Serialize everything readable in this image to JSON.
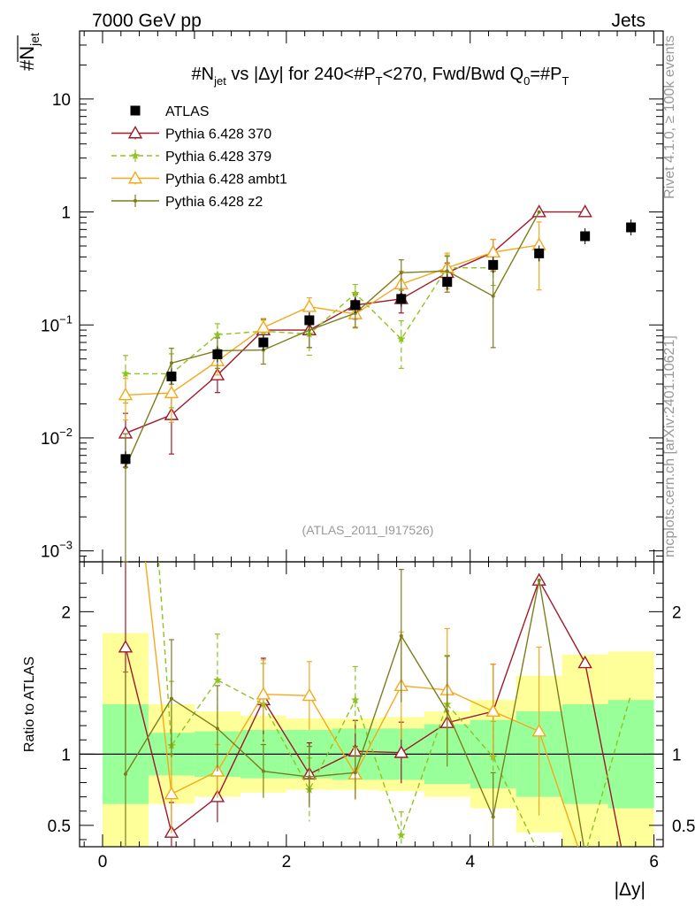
{
  "header": {
    "left": "7000 GeV pp",
    "right": "Jets"
  },
  "side": {
    "rivet": "Rivet 4.1.0, ≥ 100k events",
    "mcplots": "mcplots.cern.ch [arXiv:2401.10621]"
  },
  "analysis_id": "(ATLAS_2011_I917526)",
  "chart_data": {
    "type": "line",
    "title": "#N_jet vs |Δy| for 240<#P_T<270, Fwd/Bwd Q_0=#P_T",
    "title_parts": {
      "a": "#N",
      "a_sub": "jet",
      "b": " vs |Δy|  for 240<#P",
      "b_sub": "T",
      "c": "<270, Fwd/Bwd Q",
      "c_sub": "0",
      "d": "=#P",
      "d_sub": "T"
    },
    "ylabel": "#N",
    "ylabel_sub": "jet",
    "xlabel": "|Δy|",
    "ratio_ylabel": "Ratio to ATLAS",
    "xlim": [
      -0.25,
      6.1
    ],
    "ylim": [
      0.0008,
      40
    ],
    "yscale": "log",
    "ratio_ylim": [
      0.35,
      2.35
    ],
    "x_ticks": [
      0,
      2,
      4,
      6
    ],
    "x_tick_labels": [
      "0",
      "2",
      "4",
      "6"
    ],
    "y_ticks": [
      {
        "value": 10,
        "base": "10",
        "exp": ""
      },
      {
        "value": 1,
        "base": "1",
        "exp": ""
      },
      {
        "value": 0.1,
        "base": "10",
        "exp": "−1"
      },
      {
        "value": 0.01,
        "base": "10",
        "exp": "−2"
      },
      {
        "value": 0.001,
        "base": "10",
        "exp": "−3"
      }
    ],
    "ratio_ticks": [
      {
        "value": 2,
        "label": "2"
      },
      {
        "value": 1,
        "label": "1"
      },
      {
        "value": 0.5,
        "label": "0.5"
      }
    ],
    "bins": [
      0,
      0.5,
      1,
      1.5,
      2,
      2.5,
      3,
      3.5,
      4,
      4.5,
      5,
      5.5,
      6
    ],
    "data": {
      "name": "ATLAS",
      "x": [
        0.25,
        0.75,
        1.25,
        1.75,
        2.25,
        2.75,
        3.25,
        3.75,
        4.25,
        4.75,
        5.25,
        5.75
      ],
      "y": [
        0.0065,
        0.035,
        0.055,
        0.07,
        0.11,
        0.15,
        0.17,
        0.24,
        0.34,
        0.43,
        0.61,
        0.73
      ],
      "band_green": [
        0.35,
        0.15,
        0.16,
        0.17,
        0.17,
        0.18,
        0.18,
        0.21,
        0.24,
        0.3,
        0.35,
        0.38
      ],
      "band_yellow": [
        0.85,
        0.35,
        0.3,
        0.27,
        0.25,
        0.25,
        0.26,
        0.3,
        0.38,
        0.55,
        0.7,
        0.72
      ]
    },
    "series": [
      {
        "name": "Pythia 6.428 370",
        "color": "#a0192a",
        "dash": "",
        "marker": "triangle-open",
        "x": [
          0.25,
          0.75,
          1.25,
          1.75,
          2.25,
          2.75,
          3.25,
          3.75,
          4.25,
          4.75,
          5.25
        ],
        "y": [
          0.011,
          0.016,
          0.036,
          0.09,
          0.09,
          0.15,
          0.17,
          0.29,
          0.44,
          1.0,
          1.0
        ],
        "err_rel": [
          0.5,
          0.55,
          0.3,
          0.25,
          0.3,
          0.25,
          0.25,
          0.22,
          0.3,
          0,
          0
        ],
        "ratio": [
          1.75,
          0.45,
          0.7,
          1.38,
          0.86,
          1.02,
          1.01,
          1.22,
          1.3,
          2.22,
          1.64,
          0.0
        ]
      },
      {
        "name": "Pythia 6.428 379",
        "color": "#8fc31f",
        "dash": "6,4",
        "marker": "star",
        "x": [
          0.25,
          0.75,
          1.25,
          1.75,
          2.25,
          2.75,
          3.25,
          3.75,
          4.25
        ],
        "y": [
          0.037,
          0.037,
          0.082,
          0.088,
          0.083,
          0.19,
          0.075,
          0.32,
          0.32
        ],
        "err_rel": [
          0.45,
          0.5,
          0.25,
          0.25,
          0.35,
          0.2,
          0.45,
          0.3,
          0.3
        ],
        "ratio": [
          5.7,
          1.06,
          1.52,
          1.35,
          0.75,
          1.38,
          0.43,
          1.35,
          0.98,
          0.3,
          0.3,
          1.42
        ]
      },
      {
        "name": "Pythia 6.428 ambt1",
        "color": "#f5a81c",
        "dash": "",
        "marker": "triangle-open",
        "x": [
          0.25,
          0.75,
          1.25,
          1.75,
          2.25,
          2.75,
          3.25,
          3.75,
          4.25,
          4.75
        ],
        "y": [
          0.024,
          0.025,
          0.048,
          0.095,
          0.145,
          0.125,
          0.23,
          0.32,
          0.44,
          0.51
        ],
        "err_rel": [
          0.4,
          0.45,
          0.25,
          0.2,
          0.2,
          0.25,
          0.3,
          0.35,
          0.3,
          0.6
        ],
        "ratio": [
          3.6,
          0.72,
          0.88,
          1.42,
          1.41,
          0.86,
          1.48,
          1.45,
          1.3,
          1.16,
          0.2,
          0.2
        ]
      },
      {
        "name": "Pythia 6.428 z2",
        "color": "#7d7d1d",
        "dash": "",
        "marker": "dot",
        "x": [
          0.25,
          0.75,
          1.25,
          1.75,
          2.25,
          2.75,
          3.25,
          3.75,
          4.25,
          4.75
        ],
        "y": [
          0.0055,
          0.046,
          0.059,
          0.06,
          0.09,
          0.127,
          0.29,
          0.3,
          0.18,
          1.0
        ],
        "err_rel": [
          0.98,
          0.35,
          0.3,
          0.25,
          0.3,
          0.25,
          0.3,
          0.35,
          0.65,
          0
        ],
        "ratio": [
          0.86,
          1.39,
          1.18,
          0.88,
          0.84,
          0.87,
          1.83,
          1.3,
          0.56,
          2.22,
          0.3,
          0.3
        ]
      }
    ]
  }
}
